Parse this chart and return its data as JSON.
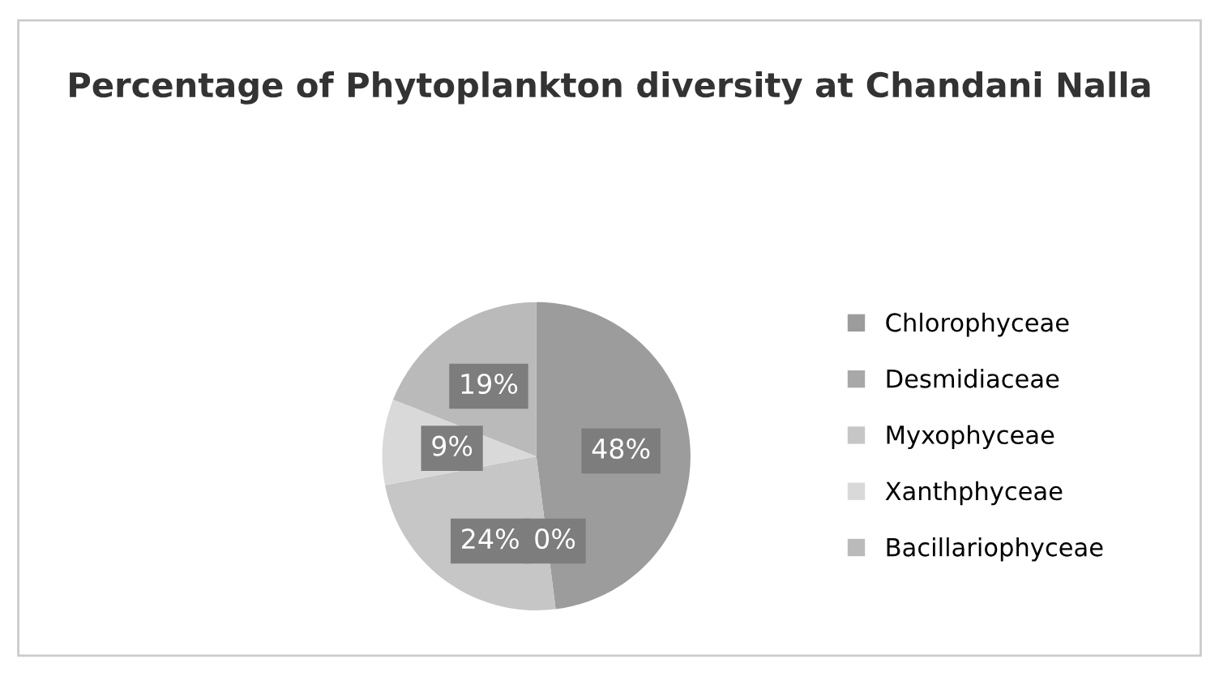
{
  "chart_data": {
    "type": "pie",
    "title": "Percentage of Phytoplankton diversity at Chandani Nalla",
    "categories": [
      "Chlorophyceae",
      "Desmidiaceae",
      "Myxophyceae",
      "Xanthphyceae",
      "Bacillariophyceae"
    ],
    "values": [
      48,
      0,
      24,
      9,
      19
    ],
    "colors": [
      "#9c9c9c",
      "#a8a8a8",
      "#c6c6c6",
      "#d9d9d9",
      "#bababa"
    ],
    "value_labels": [
      "48%",
      "0%",
      "24%",
      "9%",
      "19%"
    ],
    "legend": "right"
  }
}
